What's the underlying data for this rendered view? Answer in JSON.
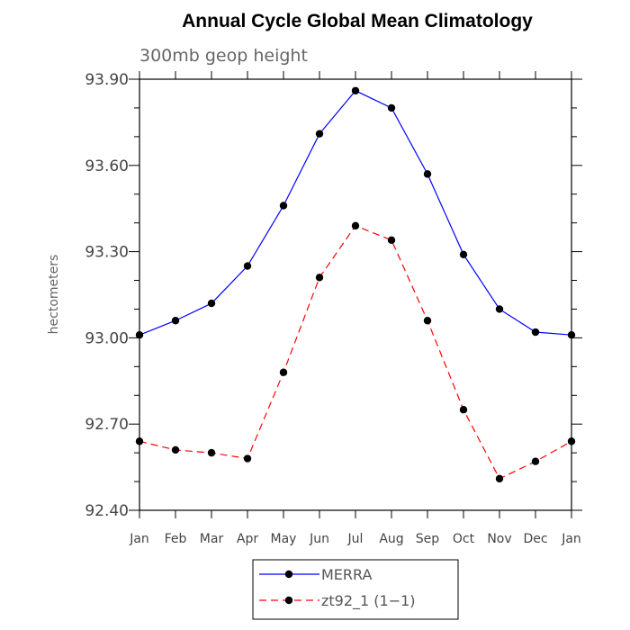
{
  "chart_data": {
    "type": "line",
    "title": "Annual Cycle Global Mean Climatology",
    "subtitle": "300mb geop height",
    "ylabel": "hectometers",
    "xlabel": "",
    "categories": [
      "Jan",
      "Feb",
      "Mar",
      "Apr",
      "May",
      "Jun",
      "Jul",
      "Aug",
      "Sep",
      "Oct",
      "Nov",
      "Dec",
      "Jan"
    ],
    "ylim": [
      92.4,
      93.9
    ],
    "yticks": [
      "92.40",
      "92.70",
      "93.00",
      "93.30",
      "93.60",
      "93.90"
    ],
    "grid": false,
    "legend_position": "bottom",
    "series": [
      {
        "name": "MERRA",
        "color": "#0000ff",
        "style": "solid",
        "marker": "filled-circle",
        "values": [
          93.01,
          93.06,
          93.12,
          93.25,
          93.46,
          93.71,
          93.86,
          93.8,
          93.57,
          93.29,
          93.1,
          93.02,
          93.01
        ]
      },
      {
        "name": "zt92_1 (1−1)",
        "color": "#ff0000",
        "style": "dashed",
        "marker": "filled-circle",
        "values": [
          92.64,
          92.61,
          92.6,
          92.58,
          92.88,
          93.21,
          93.39,
          93.34,
          93.06,
          92.75,
          92.51,
          92.57,
          92.64
        ]
      }
    ]
  }
}
